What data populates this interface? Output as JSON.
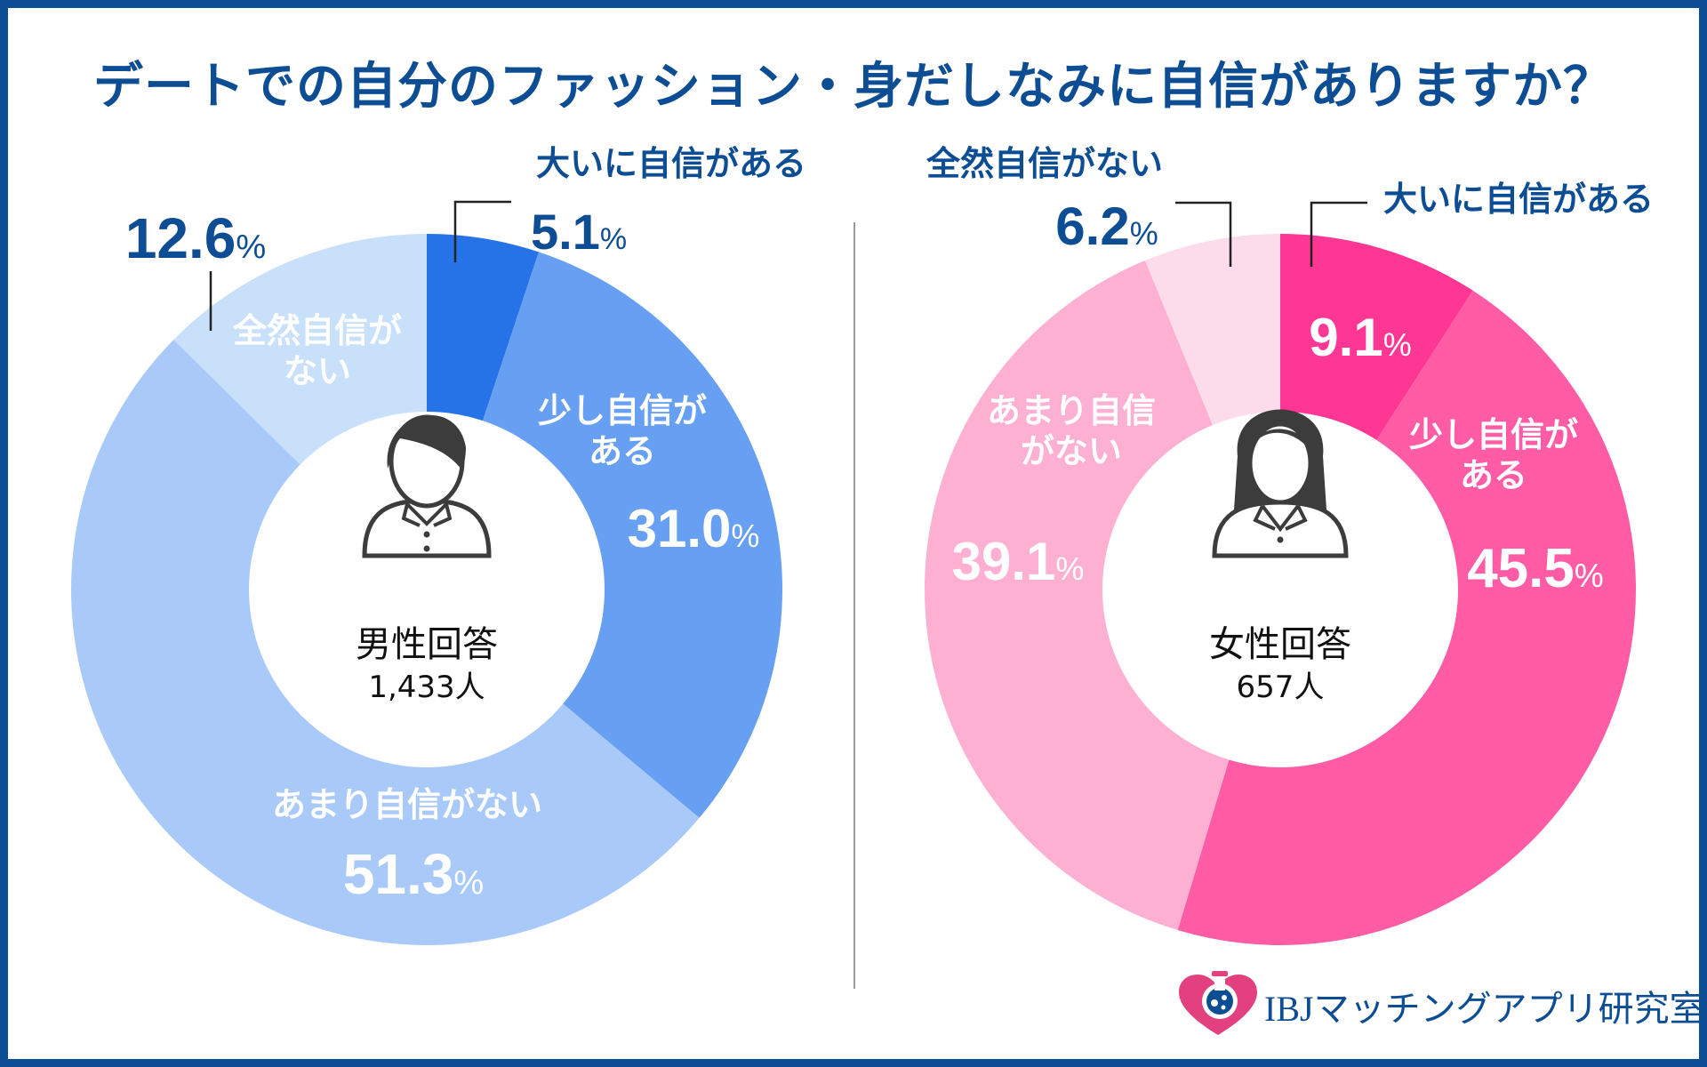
{
  "title": "デートでの自分のファッション・身だしなみに自信がありますか？",
  "percent_sign": "%",
  "brand": {
    "text": "IBJマッチングアプリ研究室"
  },
  "chart_data": [
    {
      "type": "pie",
      "name": "men",
      "center_label": "男性回答",
      "count_label": "1,433人",
      "icon": "male-person-icon",
      "categories": [
        "大いに自信がある",
        "少し自信がある",
        "あまり自信がない",
        "全然自信がない"
      ],
      "values": [
        5.1,
        31.0,
        51.3,
        12.6
      ],
      "value_labels": [
        "5.1",
        "31.0",
        "51.3",
        "12.6"
      ],
      "slice_labels": [
        [
          "大いに自信がある"
        ],
        [
          "少し自信が",
          "ある"
        ],
        [
          "あまり自信がない"
        ],
        [
          "全然自信が",
          "ない"
        ]
      ],
      "colors": [
        "#2673e8",
        "#679ff3",
        "#a9caf9",
        "#c9e0fb"
      ]
    },
    {
      "type": "pie",
      "name": "women",
      "center_label": "女性回答",
      "count_label": "657人",
      "icon": "female-person-icon",
      "categories": [
        "大いに自信がある",
        "少し自信がある",
        "あまり自信がない",
        "全然自信がない"
      ],
      "values": [
        9.1,
        45.5,
        39.1,
        6.2
      ],
      "value_labels": [
        "9.1",
        "45.5",
        "39.1",
        "6.2"
      ],
      "slice_labels": [
        [
          "大いに自信がある"
        ],
        [
          "少し自信が",
          "ある"
        ],
        [
          "あまり自信",
          "がない"
        ],
        [
          "全然自信がない"
        ]
      ],
      "colors": [
        "#fe3694",
        "#ff5ca5",
        "#feb0d3",
        "#fcdcea"
      ]
    }
  ]
}
